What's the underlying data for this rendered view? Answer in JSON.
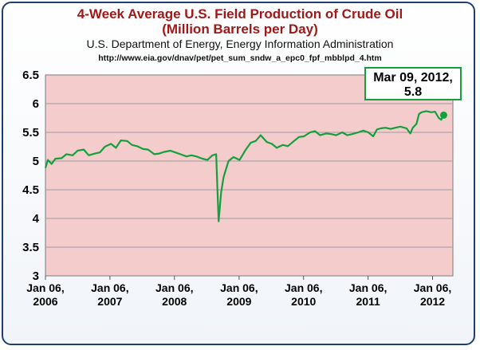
{
  "chart_data": {
    "type": "line",
    "title": "4-Week Average U.S. Field Production of Crude Oil",
    "title_line2": "(Million Barrels per Day)",
    "subtitle": "U.S. Department of Energy, Energy Information Administration",
    "source_url": "http://www.eia.gov/dnav/pet/pet_sum_sndw_a_epc0_fpf_mbblpd_4.htm",
    "xlabel": "",
    "ylabel": "",
    "ylim": [
      3,
      6.5
    ],
    "yticks": [
      "3",
      "3.5",
      "4",
      "4.5",
      "5",
      "5.5",
      "6",
      "6.5"
    ],
    "xlim": [
      "2006-01-06",
      "2012-04-30"
    ],
    "xticks": [
      {
        "date": "2006-01-06",
        "line1": "Jan 06,",
        "line2": "2006"
      },
      {
        "date": "2007-01-06",
        "line1": "Jan 06,",
        "line2": "2007"
      },
      {
        "date": "2008-01-06",
        "line1": "Jan 06,",
        "line2": "2008"
      },
      {
        "date": "2009-01-06",
        "line1": "Jan 06,",
        "line2": "2009"
      },
      {
        "date": "2010-01-06",
        "line1": "Jan 06,",
        "line2": "2010"
      },
      {
        "date": "2011-01-06",
        "line1": "Jan 06,",
        "line2": "2011"
      },
      {
        "date": "2012-01-06",
        "line1": "Jan 06,",
        "line2": "2012"
      }
    ],
    "grid": "horizontal",
    "plot_background": "#f4cccc",
    "line_color": "#14a03c",
    "series": [
      {
        "points": [
          [
            "2006-01-06",
            4.88
          ],
          [
            "2006-01-20",
            5.02
          ],
          [
            "2006-02-10",
            4.95
          ],
          [
            "2006-03-03",
            5.04
          ],
          [
            "2006-04-07",
            5.05
          ],
          [
            "2006-05-05",
            5.12
          ],
          [
            "2006-06-09",
            5.1
          ],
          [
            "2006-07-07",
            5.18
          ],
          [
            "2006-08-11",
            5.2
          ],
          [
            "2006-09-08",
            5.1
          ],
          [
            "2006-10-13",
            5.13
          ],
          [
            "2006-11-10",
            5.15
          ],
          [
            "2006-12-08",
            5.25
          ],
          [
            "2007-01-12",
            5.3
          ],
          [
            "2007-02-09",
            5.23
          ],
          [
            "2007-03-09",
            5.36
          ],
          [
            "2007-04-13",
            5.35
          ],
          [
            "2007-05-11",
            5.28
          ],
          [
            "2007-06-08",
            5.26
          ],
          [
            "2007-07-13",
            5.21
          ],
          [
            "2007-08-10",
            5.2
          ],
          [
            "2007-09-14",
            5.12
          ],
          [
            "2007-10-12",
            5.13
          ],
          [
            "2007-11-09",
            5.16
          ],
          [
            "2007-12-14",
            5.18
          ],
          [
            "2008-01-11",
            5.15
          ],
          [
            "2008-02-08",
            5.12
          ],
          [
            "2008-03-14",
            5.08
          ],
          [
            "2008-04-11",
            5.1
          ],
          [
            "2008-05-09",
            5.08
          ],
          [
            "2008-06-13",
            5.04
          ],
          [
            "2008-07-11",
            5.02
          ],
          [
            "2008-08-08",
            5.1
          ],
          [
            "2008-08-29",
            5.12
          ],
          [
            "2008-09-05",
            4.55
          ],
          [
            "2008-09-12",
            3.95
          ],
          [
            "2008-09-26",
            4.45
          ],
          [
            "2008-10-10",
            4.72
          ],
          [
            "2008-11-07",
            5.0
          ],
          [
            "2008-12-05",
            5.07
          ],
          [
            "2009-01-09",
            5.02
          ],
          [
            "2009-02-13",
            5.2
          ],
          [
            "2009-03-13",
            5.32
          ],
          [
            "2009-04-10",
            5.35
          ],
          [
            "2009-05-08",
            5.45
          ],
          [
            "2009-06-12",
            5.33
          ],
          [
            "2009-07-10",
            5.3
          ],
          [
            "2009-08-07",
            5.23
          ],
          [
            "2009-09-11",
            5.28
          ],
          [
            "2009-10-09",
            5.26
          ],
          [
            "2009-11-13",
            5.35
          ],
          [
            "2009-12-11",
            5.42
          ],
          [
            "2010-01-08",
            5.43
          ],
          [
            "2010-02-12",
            5.5
          ],
          [
            "2010-03-12",
            5.52
          ],
          [
            "2010-04-09",
            5.45
          ],
          [
            "2010-05-14",
            5.48
          ],
          [
            "2010-06-11",
            5.47
          ],
          [
            "2010-07-09",
            5.45
          ],
          [
            "2010-08-13",
            5.5
          ],
          [
            "2010-09-10",
            5.45
          ],
          [
            "2010-10-08",
            5.47
          ],
          [
            "2010-11-12",
            5.5
          ],
          [
            "2010-12-10",
            5.53
          ],
          [
            "2011-01-07",
            5.5
          ],
          [
            "2011-02-04",
            5.43
          ],
          [
            "2011-02-25",
            5.55
          ],
          [
            "2011-03-18",
            5.57
          ],
          [
            "2011-04-15",
            5.58
          ],
          [
            "2011-05-13",
            5.56
          ],
          [
            "2011-06-10",
            5.58
          ],
          [
            "2011-07-08",
            5.6
          ],
          [
            "2011-08-12",
            5.57
          ],
          [
            "2011-09-02",
            5.48
          ],
          [
            "2011-09-16",
            5.58
          ],
          [
            "2011-10-07",
            5.65
          ],
          [
            "2011-10-21",
            5.82
          ],
          [
            "2011-11-04",
            5.85
          ],
          [
            "2011-12-02",
            5.87
          ],
          [
            "2011-12-30",
            5.85
          ],
          [
            "2012-01-20",
            5.86
          ],
          [
            "2012-02-10",
            5.75
          ],
          [
            "2012-02-24",
            5.72
          ],
          [
            "2012-03-09",
            5.8
          ]
        ]
      }
    ],
    "annotation": {
      "date": "2012-03-09",
      "value": 5.8,
      "line1": "Mar 09, 2012,",
      "line2": "5.8"
    }
  }
}
